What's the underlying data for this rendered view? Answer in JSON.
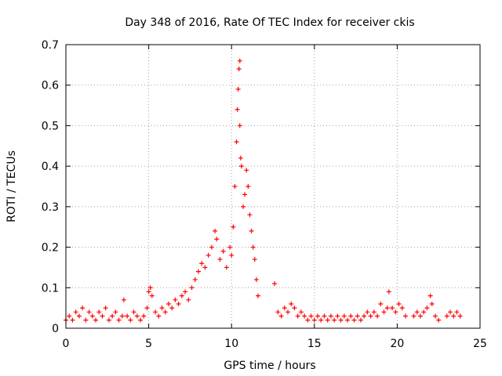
{
  "chart_data": {
    "type": "scatter",
    "title": "Day 348 of 2016, Rate Of TEC Index for receiver ckis",
    "xlabel": "GPS time / hours",
    "ylabel": "ROTI / TECUs",
    "xlim": [
      0,
      25
    ],
    "ylim": [
      0,
      0.7
    ],
    "xticks": [
      0,
      5,
      10,
      15,
      20,
      25
    ],
    "yticks": [
      0,
      0.1,
      0.2,
      0.3,
      0.4,
      0.5,
      0.6,
      0.7
    ],
    "grid": true,
    "legend": "none",
    "marker": "+",
    "series": [
      {
        "color": "#ff0000",
        "points": [
          [
            0.0,
            0.02
          ],
          [
            0.2,
            0.03
          ],
          [
            0.4,
            0.02
          ],
          [
            0.6,
            0.04
          ],
          [
            0.8,
            0.03
          ],
          [
            1.0,
            0.05
          ],
          [
            1.2,
            0.02
          ],
          [
            1.4,
            0.04
          ],
          [
            1.6,
            0.03
          ],
          [
            1.8,
            0.02
          ],
          [
            2.0,
            0.04
          ],
          [
            2.2,
            0.03
          ],
          [
            2.4,
            0.05
          ],
          [
            2.6,
            0.02
          ],
          [
            2.8,
            0.03
          ],
          [
            3.0,
            0.04
          ],
          [
            3.2,
            0.02
          ],
          [
            3.4,
            0.03
          ],
          [
            3.5,
            0.07
          ],
          [
            3.7,
            0.03
          ],
          [
            3.9,
            0.02
          ],
          [
            4.1,
            0.04
          ],
          [
            4.3,
            0.03
          ],
          [
            4.5,
            0.02
          ],
          [
            4.7,
            0.03
          ],
          [
            4.9,
            0.05
          ],
          [
            5.0,
            0.09
          ],
          [
            5.1,
            0.1
          ],
          [
            5.2,
            0.08
          ],
          [
            5.4,
            0.04
          ],
          [
            5.6,
            0.03
          ],
          [
            5.8,
            0.05
          ],
          [
            6.0,
            0.04
          ],
          [
            6.2,
            0.06
          ],
          [
            6.4,
            0.05
          ],
          [
            6.6,
            0.07
          ],
          [
            6.8,
            0.06
          ],
          [
            7.0,
            0.08
          ],
          [
            7.2,
            0.09
          ],
          [
            7.4,
            0.07
          ],
          [
            7.6,
            0.1
          ],
          [
            7.8,
            0.12
          ],
          [
            8.0,
            0.14
          ],
          [
            8.2,
            0.16
          ],
          [
            8.4,
            0.15
          ],
          [
            8.6,
            0.18
          ],
          [
            8.8,
            0.2
          ],
          [
            9.0,
            0.24
          ],
          [
            9.1,
            0.22
          ],
          [
            9.3,
            0.17
          ],
          [
            9.5,
            0.19
          ],
          [
            9.7,
            0.15
          ],
          [
            9.9,
            0.2
          ],
          [
            10.0,
            0.18
          ],
          [
            10.1,
            0.25
          ],
          [
            10.2,
            0.35
          ],
          [
            10.3,
            0.46
          ],
          [
            10.35,
            0.54
          ],
          [
            10.4,
            0.59
          ],
          [
            10.45,
            0.64
          ],
          [
            10.5,
            0.66
          ],
          [
            10.5,
            0.5
          ],
          [
            10.55,
            0.42
          ],
          [
            10.6,
            0.4
          ],
          [
            10.7,
            0.3
          ],
          [
            10.8,
            0.33
          ],
          [
            10.9,
            0.39
          ],
          [
            11.0,
            0.35
          ],
          [
            11.1,
            0.28
          ],
          [
            11.2,
            0.24
          ],
          [
            11.3,
            0.2
          ],
          [
            11.4,
            0.17
          ],
          [
            11.5,
            0.12
          ],
          [
            11.6,
            0.08
          ],
          [
            12.6,
            0.11
          ],
          [
            12.8,
            0.04
          ],
          [
            13.0,
            0.03
          ],
          [
            13.2,
            0.05
          ],
          [
            13.4,
            0.04
          ],
          [
            13.6,
            0.06
          ],
          [
            13.8,
            0.05
          ],
          [
            14.0,
            0.03
          ],
          [
            14.2,
            0.04
          ],
          [
            14.4,
            0.03
          ],
          [
            14.6,
            0.02
          ],
          [
            14.8,
            0.03
          ],
          [
            15.0,
            0.02
          ],
          [
            15.2,
            0.03
          ],
          [
            15.4,
            0.02
          ],
          [
            15.6,
            0.03
          ],
          [
            15.8,
            0.02
          ],
          [
            16.0,
            0.03
          ],
          [
            16.2,
            0.02
          ],
          [
            16.4,
            0.03
          ],
          [
            16.6,
            0.02
          ],
          [
            16.8,
            0.03
          ],
          [
            17.0,
            0.02
          ],
          [
            17.2,
            0.03
          ],
          [
            17.4,
            0.02
          ],
          [
            17.6,
            0.03
          ],
          [
            17.8,
            0.02
          ],
          [
            18.0,
            0.03
          ],
          [
            18.2,
            0.04
          ],
          [
            18.4,
            0.03
          ],
          [
            18.6,
            0.04
          ],
          [
            18.8,
            0.03
          ],
          [
            19.0,
            0.06
          ],
          [
            19.2,
            0.04
          ],
          [
            19.4,
            0.05
          ],
          [
            19.5,
            0.09
          ],
          [
            19.7,
            0.05
          ],
          [
            19.9,
            0.04
          ],
          [
            20.1,
            0.06
          ],
          [
            20.3,
            0.05
          ],
          [
            20.5,
            0.03
          ],
          [
            21.0,
            0.03
          ],
          [
            21.2,
            0.04
          ],
          [
            21.4,
            0.03
          ],
          [
            21.6,
            0.04
          ],
          [
            21.8,
            0.05
          ],
          [
            22.0,
            0.08
          ],
          [
            22.1,
            0.06
          ],
          [
            22.3,
            0.03
          ],
          [
            22.5,
            0.02
          ],
          [
            23.0,
            0.03
          ],
          [
            23.2,
            0.04
          ],
          [
            23.4,
            0.03
          ],
          [
            23.6,
            0.04
          ],
          [
            23.8,
            0.03
          ]
        ]
      }
    ]
  }
}
